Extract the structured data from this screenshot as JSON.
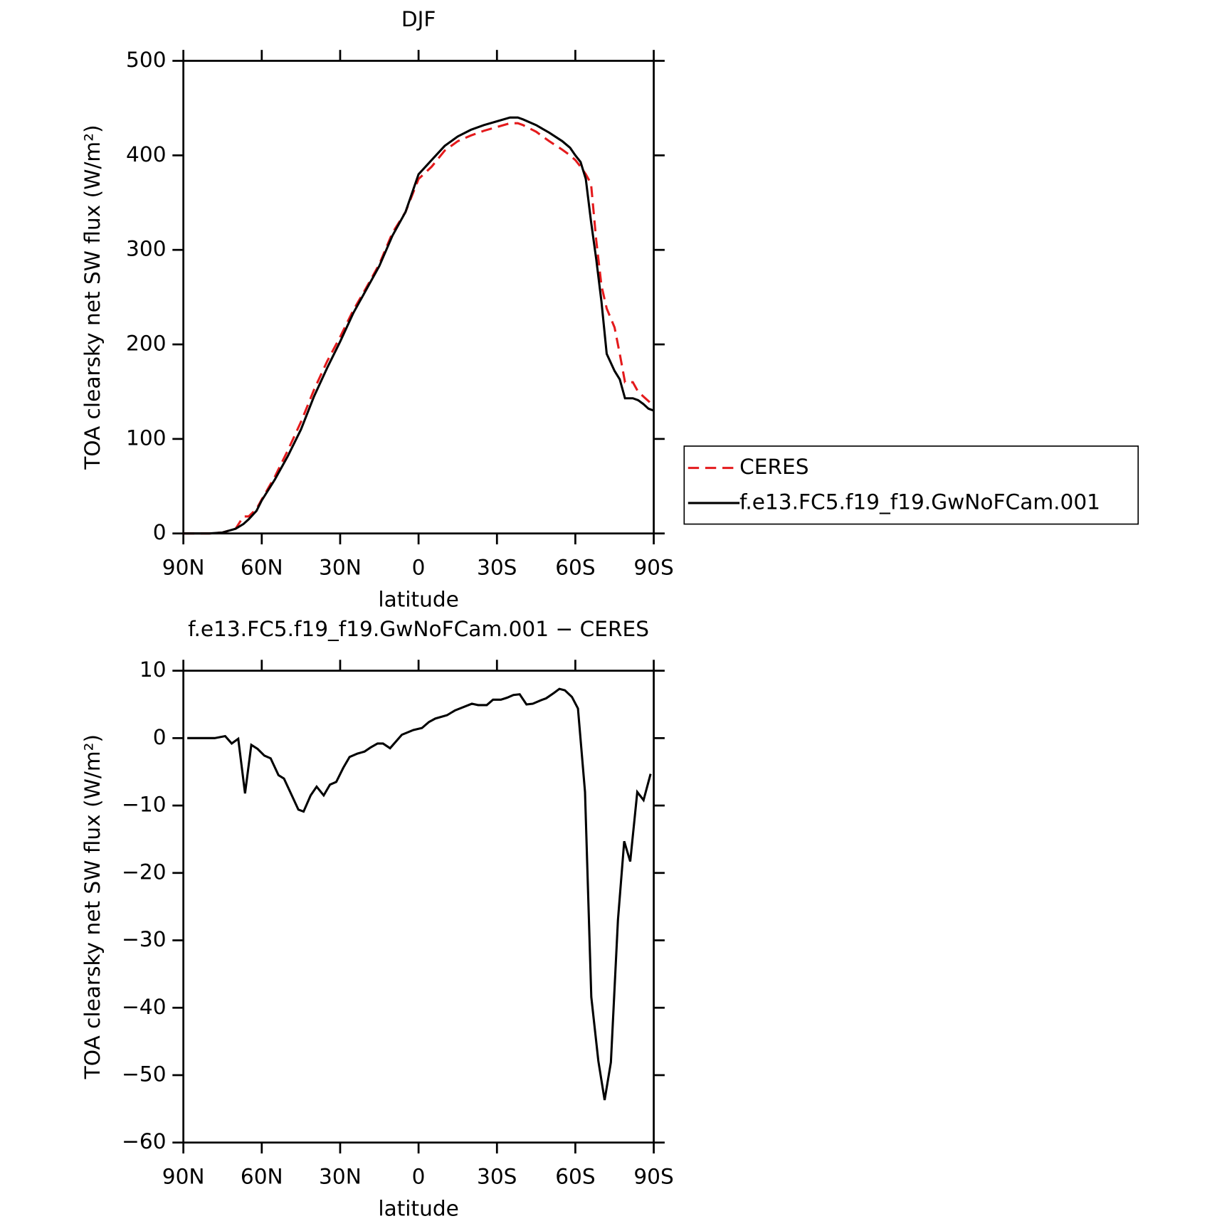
{
  "chart_data": [
    {
      "type": "line",
      "title": "DJF",
      "x_label": "latitude",
      "y_label": "TOA clearsky net SW flux (W/m²)",
      "x": [
        90,
        85,
        80,
        75,
        70,
        67,
        65,
        62,
        60,
        55,
        50,
        45,
        40,
        35,
        30,
        25,
        20,
        15,
        10,
        5,
        0,
        -5,
        -10,
        -15,
        -20,
        -25,
        -30,
        -35,
        -38,
        -40,
        -45,
        -50,
        -55,
        -58,
        -60,
        -62,
        -64,
        -66,
        -68,
        -70,
        -72,
        -75,
        -77,
        -79,
        -82,
        -84,
        -86,
        -88,
        -90
      ],
      "series": [
        {
          "name": "CERES",
          "color": "#e41a1c",
          "style": "dashed",
          "values": [
            0,
            0,
            0,
            1,
            5,
            18,
            18,
            26,
            36,
            60,
            88,
            118,
            152,
            182,
            208,
            236,
            260,
            285,
            318,
            340,
            375,
            388,
            405,
            415,
            421,
            426,
            430,
            434,
            434,
            432,
            425,
            415,
            406,
            400,
            395,
            388,
            380,
            370,
            310,
            262,
            238,
            218,
            190,
            160,
            160,
            150,
            145,
            140,
            135
          ]
        },
        {
          "name": "f.e13.FC5.f19_f19.GwNoFCam.001",
          "color": "#000000",
          "style": "solid",
          "values": [
            0,
            0,
            0,
            1,
            5,
            10,
            15,
            24,
            35,
            57,
            82,
            110,
            145,
            175,
            203,
            233,
            258,
            283,
            315,
            340,
            380,
            395,
            410,
            420,
            427,
            432,
            436,
            440,
            440,
            438,
            432,
            424,
            415,
            408,
            400,
            393,
            375,
            330,
            290,
            245,
            190,
            172,
            163,
            143,
            143,
            141,
            137,
            132,
            130
          ]
        }
      ],
      "xlim": [
        90,
        -90
      ],
      "ylim": [
        0,
        500
      ],
      "xticks": [
        {
          "value": 90,
          "label": "90N"
        },
        {
          "value": 60,
          "label": "60N"
        },
        {
          "value": 30,
          "label": "30N"
        },
        0,
        {
          "value": -30,
          "label": "30S"
        },
        {
          "value": -60,
          "label": "60S"
        },
        {
          "value": -90,
          "label": "90S"
        }
      ],
      "yticks": [
        0,
        100,
        200,
        300,
        400,
        500
      ],
      "legend": "right"
    },
    {
      "type": "line",
      "title": "f.e13.FC5.f19_f19.GwNoFCam.001 − CERES",
      "x_label": "latitude",
      "y_label": "TOA clearsky net SW flux (W/m²)",
      "x": [
        88.5,
        78,
        74,
        71.5,
        69,
        66.4,
        64,
        61.6,
        59,
        56.6,
        53.6,
        51.5,
        48.5,
        46,
        44,
        41.3,
        39,
        36.3,
        33.9,
        31.5,
        28.8,
        26.4,
        23.4,
        20.7,
        18.4,
        15.7,
        13.6,
        10.9,
        6.4,
        2,
        -1.3,
        -4,
        -6.4,
        -10.9,
        -13.9,
        -20.4,
        -22.8,
        -26.1,
        -28.5,
        -31.5,
        -33.9,
        -36.3,
        -38.7,
        -41.3,
        -43.7,
        -46.7,
        -48.8,
        -51.8,
        -53.9,
        -56,
        -58.7,
        -61,
        -63.7,
        -66.1,
        -68.8,
        -71.2,
        -73.6,
        -76.3,
        -78.7,
        -81,
        -83.7,
        -86.1,
        -88.8
      ],
      "series": [
        {
          "name": "f.e13.FC5.f19_f19.GwNoFCam.001 − CERES",
          "color": "#000000",
          "style": "solid",
          "values": [
            0,
            0,
            0.3,
            -0.8,
            -0.1,
            -8.2,
            -1,
            -1.6,
            -2.6,
            -3,
            -5.5,
            -6,
            -8.5,
            -10.6,
            -10.9,
            -8.5,
            -7.2,
            -8.5,
            -6.9,
            -6.5,
            -4.4,
            -2.8,
            -2.3,
            -2,
            -1.4,
            -0.8,
            -0.8,
            -1.5,
            0.5,
            1.2,
            1.5,
            2.4,
            2.9,
            3.4,
            4.1,
            5.1,
            4.9,
            4.9,
            5.7,
            5.7,
            6,
            6.4,
            6.5,
            5,
            5.1,
            5.6,
            5.9,
            6.7,
            7.3,
            7.1,
            6.1,
            4.4,
            -8,
            -38.4,
            -47.9,
            -53.7,
            -48.1,
            -27,
            -15.3,
            -18.3,
            -8,
            -9.2,
            -5.3
          ]
        }
      ],
      "xlim": [
        90,
        -90
      ],
      "ylim": [
        -60,
        10
      ],
      "xticks": [
        {
          "value": 90,
          "label": "90N"
        },
        {
          "value": 60,
          "label": "60N"
        },
        {
          "value": 30,
          "label": "30N"
        },
        0,
        {
          "value": -30,
          "label": "30S"
        },
        {
          "value": -60,
          "label": "60S"
        },
        {
          "value": -90,
          "label": "90S"
        }
      ],
      "yticks": [
        {
          "value": -60,
          "label": "−60"
        },
        {
          "value": -50,
          "label": "−50"
        },
        {
          "value": -40,
          "label": "−40"
        },
        {
          "value": -30,
          "label": "−30"
        },
        {
          "value": -20,
          "label": "−20"
        },
        {
          "value": -10,
          "label": "−10"
        },
        0,
        10
      ]
    }
  ]
}
